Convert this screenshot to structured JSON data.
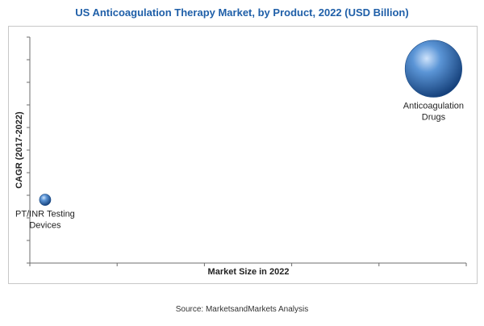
{
  "title": "US Anticoagulation Therapy Market, by Product, 2022 (USD Billion)",
  "source": "Source: MarketsandMarkets Analysis",
  "colors": {
    "title": "#1f5fa8",
    "bubble": "#3d7dc6"
  },
  "chart_data": {
    "type": "scatter",
    "title": "US Anticoagulation Therapy Market, by Product, 2022 (USD Billion)",
    "xlabel": "Market Size in 2022",
    "ylabel": "CAGR (2017-2022)",
    "xlim": [
      0,
      10
    ],
    "ylim": [
      0,
      10
    ],
    "grid": false,
    "points": [
      {
        "label_lines": [
          "Anticoagulation",
          "Drugs"
        ],
        "x": 9.25,
        "y": 8.6,
        "size": 7.5
      },
      {
        "label_lines": [
          "PT/INR Testing",
          "Devices"
        ],
        "x": 0.35,
        "y": 2.8,
        "size": 1.5
      }
    ]
  }
}
